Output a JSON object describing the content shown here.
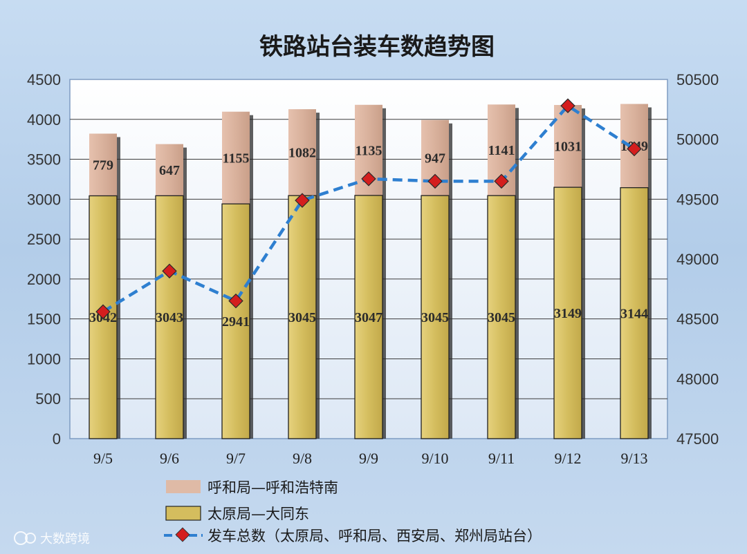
{
  "chart_data": {
    "type": "bar",
    "title": "铁路站台装车数趋势图",
    "categories": [
      "9/5",
      "9/6",
      "9/7",
      "9/8",
      "9/9",
      "9/10",
      "9/11",
      "9/12",
      "9/13"
    ],
    "stacked": true,
    "series": [
      {
        "name": "太原局—大同东",
        "type": "bar",
        "axis": "left",
        "color": "#d4bd5e",
        "values": [
          3042,
          3043,
          2941,
          3045,
          3047,
          3045,
          3045,
          3149,
          3144
        ],
        "labels": [
          "3042",
          "3043",
          "2941",
          "3045",
          "3047",
          "3045",
          "3045",
          "3149",
          "3144"
        ]
      },
      {
        "name": "呼和局—呼和浩特南",
        "type": "bar",
        "axis": "left",
        "color": "#d9b19c",
        "values": [
          779,
          647,
          1155,
          1082,
          1135,
          947,
          1141,
          1031,
          1049
        ],
        "labels": [
          "779",
          "647",
          "1155",
          "1082",
          "1135",
          "947",
          "1141",
          "1031",
          "1049"
        ]
      },
      {
        "name": "发车总数（太原局、呼和局、西安局、郑州局站台）",
        "type": "line",
        "axis": "right",
        "color": "#2e7fd0",
        "values": [
          48560,
          48900,
          48650,
          49490,
          49670,
          49650,
          49650,
          50280,
          49920
        ]
      }
    ],
    "y_left": {
      "min": 0,
      "max": 4500,
      "step": 500,
      "ticks": [
        "0",
        "500",
        "1000",
        "1500",
        "2000",
        "2500",
        "3000",
        "3500",
        "4000",
        "4500"
      ]
    },
    "y_right": {
      "min": 47500,
      "max": 50500,
      "step": 500,
      "ticks": [
        "47500",
        "48000",
        "48500",
        "49000",
        "49500",
        "50000",
        "50500"
      ]
    },
    "grid": true,
    "legend_position": "bottom"
  },
  "watermark": {
    "text": "大数跨境",
    "icon": "k-logo-icon"
  }
}
